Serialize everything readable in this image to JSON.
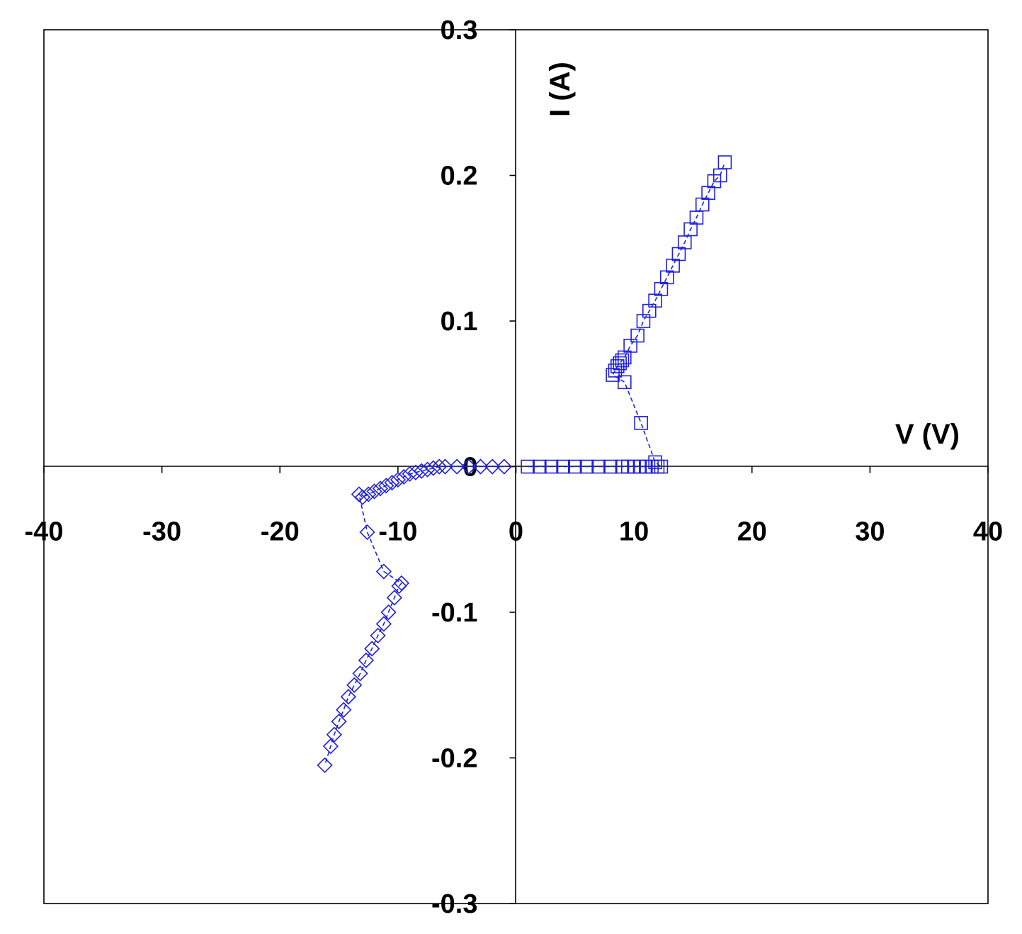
{
  "chart_data": {
    "type": "scatter",
    "xlabel": "V (V)",
    "ylabel": "I (A)",
    "xlim": [
      -40,
      40
    ],
    "ylim": [
      -0.3,
      0.3
    ],
    "x_ticks": [
      -40,
      -30,
      -20,
      -10,
      0,
      10,
      20,
      30,
      40
    ],
    "y_ticks": [
      -0.3,
      -0.2,
      -0.1,
      0,
      0.1,
      0.2,
      0.3
    ],
    "x_tick_labels": [
      "-40",
      "-30",
      "-20",
      "-10",
      "0",
      "10",
      "20",
      "30",
      "40"
    ],
    "y_tick_labels": [
      "-0.3",
      "-0.2",
      "-0.1",
      "0",
      "0.1",
      "0.2",
      "0.3"
    ],
    "grid": false,
    "color": "#2020e0",
    "series": [
      {
        "marker": "square",
        "points": [
          [
            1,
            0
          ],
          [
            2,
            0
          ],
          [
            3,
            0
          ],
          [
            4,
            0
          ],
          [
            5,
            0
          ],
          [
            6,
            0
          ],
          [
            7,
            0
          ],
          [
            8,
            0
          ],
          [
            9,
            0
          ],
          [
            9.5,
            0
          ],
          [
            10,
            0
          ],
          [
            10.5,
            0
          ],
          [
            11,
            0
          ],
          [
            11.5,
            0
          ],
          [
            12,
            0
          ],
          [
            12.3,
            0
          ],
          [
            11.8,
            0.003
          ],
          [
            10.6,
            0.03
          ],
          [
            9.2,
            0.058
          ],
          [
            8.2,
            0.063
          ],
          [
            8.4,
            0.066
          ],
          [
            8.6,
            0.069
          ],
          [
            8.8,
            0.071
          ],
          [
            9,
            0.073
          ],
          [
            9.2,
            0.075
          ],
          [
            9.7,
            0.083
          ],
          [
            10.3,
            0.09
          ],
          [
            10.8,
            0.1
          ],
          [
            11.3,
            0.107
          ],
          [
            11.8,
            0.114
          ],
          [
            12.3,
            0.122
          ],
          [
            12.8,
            0.13
          ],
          [
            13.3,
            0.138
          ],
          [
            13.8,
            0.146
          ],
          [
            14.3,
            0.154
          ],
          [
            14.8,
            0.163
          ],
          [
            15.3,
            0.171
          ],
          [
            15.8,
            0.18
          ],
          [
            16.3,
            0.188
          ],
          [
            16.8,
            0.196
          ],
          [
            17.3,
            0.2
          ],
          [
            17.7,
            0.209
          ]
        ]
      },
      {
        "marker": "diamond",
        "points": [
          [
            -1,
            0
          ],
          [
            -2,
            0
          ],
          [
            -3,
            0
          ],
          [
            -4,
            0
          ],
          [
            -5,
            0
          ],
          [
            -6,
            0
          ],
          [
            -6.5,
            0
          ],
          [
            -7,
            -0.001
          ],
          [
            -7.5,
            -0.002
          ],
          [
            -8,
            -0.003
          ],
          [
            -8.5,
            -0.004
          ],
          [
            -9,
            -0.005
          ],
          [
            -9.5,
            -0.007
          ],
          [
            -10,
            -0.009
          ],
          [
            -10.5,
            -0.011
          ],
          [
            -11,
            -0.013
          ],
          [
            -11.5,
            -0.015
          ],
          [
            -12,
            -0.017
          ],
          [
            -12.5,
            -0.019
          ],
          [
            -13,
            -0.021
          ],
          [
            -13.3,
            -0.019
          ],
          [
            -12.6,
            -0.045
          ],
          [
            -11.2,
            -0.072
          ],
          [
            -9.7,
            -0.08
          ],
          [
            -9.9,
            -0.082
          ],
          [
            -10.3,
            -0.09
          ],
          [
            -10.8,
            -0.1
          ],
          [
            -11.2,
            -0.108
          ],
          [
            -11.7,
            -0.116
          ],
          [
            -12.2,
            -0.125
          ],
          [
            -12.7,
            -0.133
          ],
          [
            -13.2,
            -0.142
          ],
          [
            -13.7,
            -0.15
          ],
          [
            -14.2,
            -0.158
          ],
          [
            -14.6,
            -0.167
          ],
          [
            -15,
            -0.175
          ],
          [
            -15.4,
            -0.184
          ],
          [
            -15.7,
            -0.192
          ],
          [
            -16.2,
            -0.205
          ]
        ]
      }
    ]
  }
}
